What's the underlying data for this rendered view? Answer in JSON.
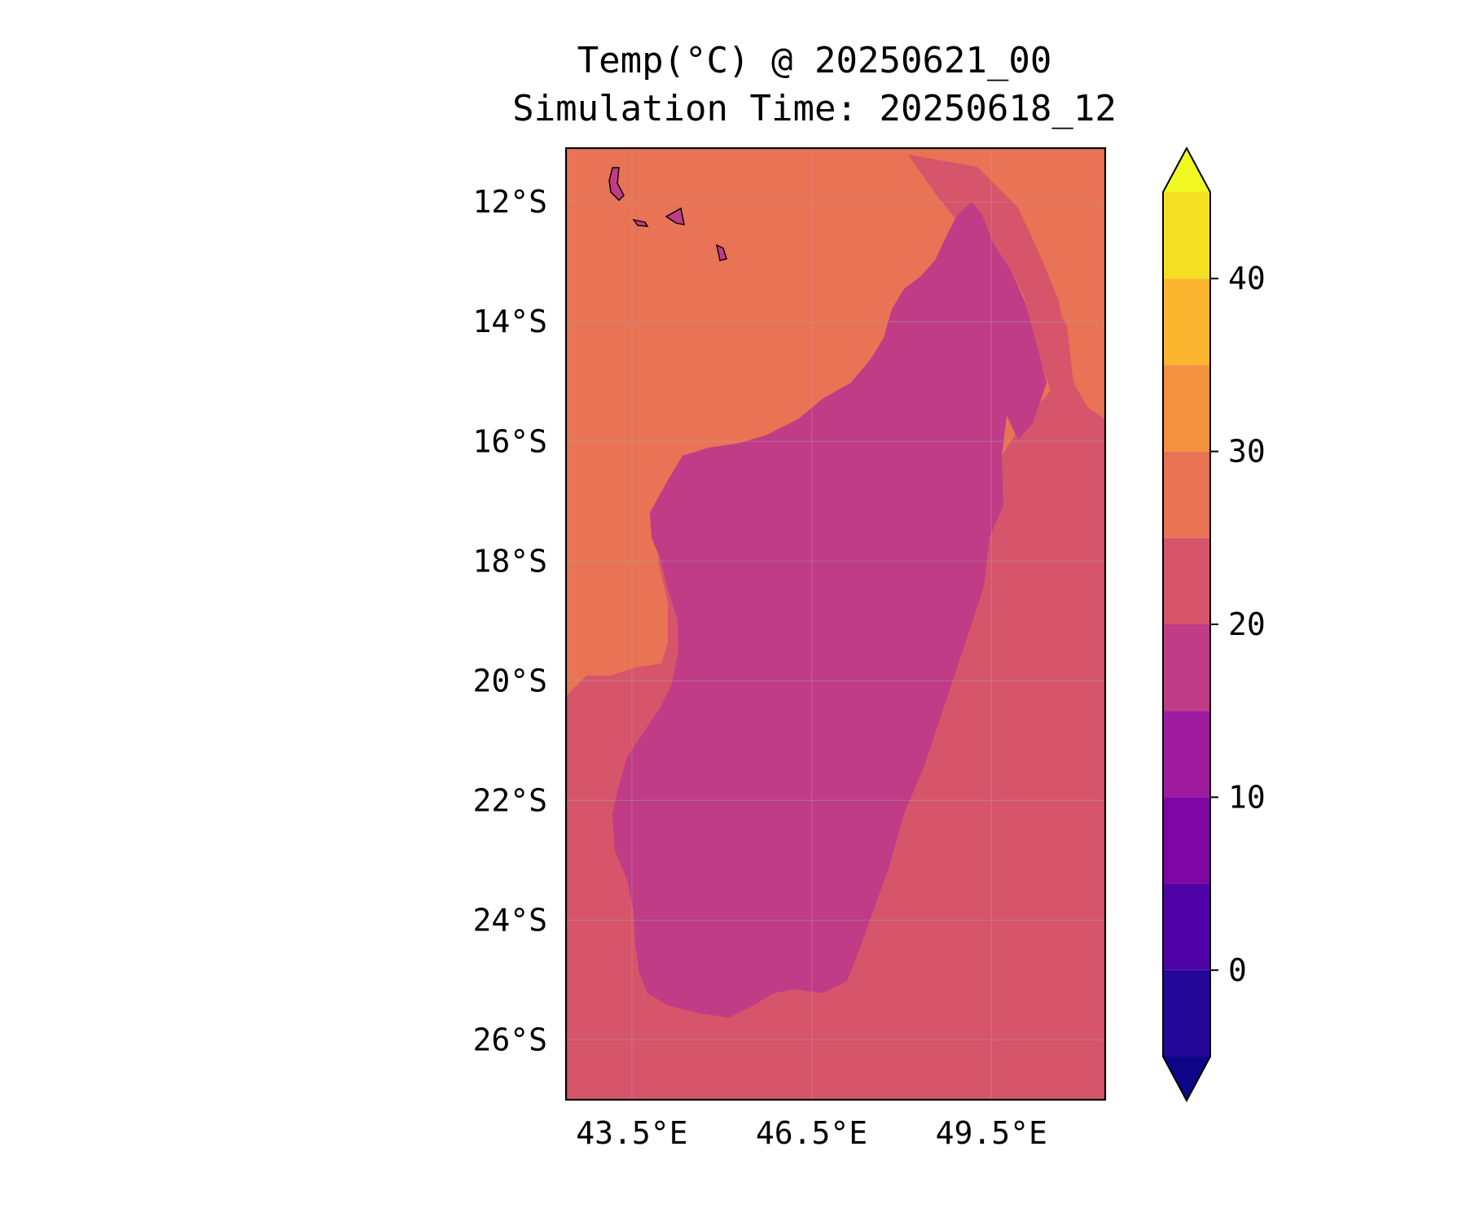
{
  "title": {
    "line1": "Temp(°C) @ 20250621_00",
    "line2": "Simulation Time: 20250618_12"
  },
  "map": {
    "lon_range": [
      42.4,
      51.4
    ],
    "lat_range": [
      -27.0,
      -11.1
    ],
    "lon_ticks": [
      {
        "value": 43.5,
        "label": "43.5°E"
      },
      {
        "value": 46.5,
        "label": "46.5°E"
      },
      {
        "value": 49.5,
        "label": "49.5°E"
      }
    ],
    "lat_ticks": [
      {
        "value": -12,
        "label": "12°S"
      },
      {
        "value": -14,
        "label": "14°S"
      },
      {
        "value": -16,
        "label": "16°S"
      },
      {
        "value": -18,
        "label": "18°S"
      },
      {
        "value": -20,
        "label": "20°S"
      },
      {
        "value": -22,
        "label": "22°S"
      },
      {
        "value": -24,
        "label": "24°S"
      },
      {
        "value": -26,
        "label": "26°S"
      }
    ],
    "grid": true,
    "colors": {
      "sea_warm": "#e97355",
      "sea_cool": "#d6556b",
      "land_15_20": "#c03c86",
      "land_10_15": "#9f1c9f",
      "land_5_10": "#7d06a4"
    }
  },
  "colorbar": {
    "min": -5,
    "max": 45,
    "ticks": [
      {
        "value": 0,
        "label": "0"
      },
      {
        "value": 10,
        "label": "10"
      },
      {
        "value": 20,
        "label": "20"
      },
      {
        "value": 30,
        "label": "30"
      },
      {
        "value": 40,
        "label": "40"
      }
    ],
    "bins": [
      {
        "from": -5,
        "to": 0,
        "color": "#24089a"
      },
      {
        "from": 0,
        "to": 5,
        "color": "#4f02a5"
      },
      {
        "from": 5,
        "to": 10,
        "color": "#7d06a4"
      },
      {
        "from": 10,
        "to": 15,
        "color": "#9f1c9f"
      },
      {
        "from": 15,
        "to": 20,
        "color": "#c03c86"
      },
      {
        "from": 20,
        "to": 25,
        "color": "#d6556b"
      },
      {
        "from": 25,
        "to": 30,
        "color": "#e97355"
      },
      {
        "from": 30,
        "to": 35,
        "color": "#f5923f"
      },
      {
        "from": 35,
        "to": 40,
        "color": "#fcb52e"
      },
      {
        "from": 40,
        "to": 45,
        "color": "#f4e022"
      }
    ],
    "extend_low_color": "#0d0787",
    "extend_high_color": "#eff821"
  }
}
